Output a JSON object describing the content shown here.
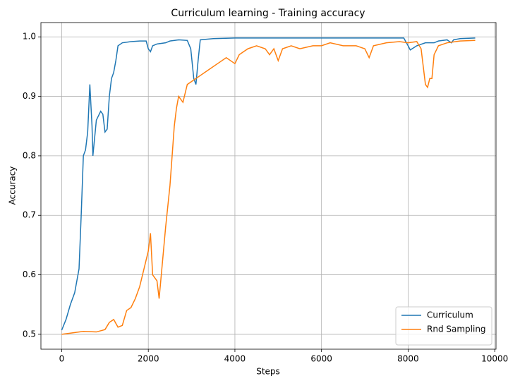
{
  "chart_data": {
    "type": "line",
    "title": "Curriculum learning - Training accuracy",
    "xlabel": "Steps",
    "ylabel": "Accuracy",
    "xlim": [
      -480,
      10030
    ],
    "ylim": [
      0.475,
      1.024
    ],
    "xticks": [
      0,
      2000,
      4000,
      6000,
      8000,
      10000
    ],
    "yticks": [
      0.5,
      0.6,
      0.7,
      0.8,
      0.9,
      {
        "value": 1,
        "label": "1.0"
      }
    ],
    "grid": true,
    "legend": "lower right",
    "series": [
      {
        "name": "Curriculum",
        "color": "#1f77b4",
        "x": [
          0,
          100,
          200,
          300,
          350,
          400,
          450,
          500,
          550,
          600,
          650,
          700,
          720,
          800,
          900,
          950,
          1000,
          1050,
          1100,
          1150,
          1200,
          1250,
          1300,
          1400,
          1600,
          1800,
          1950,
          2000,
          2050,
          2100,
          2200,
          2400,
          2500,
          2700,
          2900,
          2980,
          3050,
          3100,
          3150,
          3200,
          3500,
          4000,
          5000,
          6000,
          7000,
          7900,
          8000,
          8050,
          8200,
          8400,
          8600,
          8700,
          8900,
          9000,
          9050,
          9200,
          9550
        ],
        "values": [
          0.507,
          0.525,
          0.55,
          0.57,
          0.59,
          0.61,
          0.7,
          0.8,
          0.81,
          0.84,
          0.92,
          0.85,
          0.8,
          0.86,
          0.875,
          0.87,
          0.84,
          0.845,
          0.9,
          0.93,
          0.94,
          0.96,
          0.985,
          0.99,
          0.992,
          0.993,
          0.993,
          0.98,
          0.975,
          0.985,
          0.988,
          0.99,
          0.993,
          0.995,
          0.994,
          0.98,
          0.93,
          0.92,
          0.96,
          0.995,
          0.997,
          0.998,
          0.998,
          0.998,
          0.998,
          0.998,
          0.985,
          0.978,
          0.985,
          0.99,
          0.99,
          0.993,
          0.995,
          0.99,
          0.995,
          0.997,
          0.998
        ]
      },
      {
        "name": "Rnd Sampling",
        "color": "#ff7f0e",
        "x": [
          0,
          200,
          500,
          800,
          1000,
          1100,
          1200,
          1300,
          1400,
          1500,
          1600,
          1700,
          1800,
          1900,
          2000,
          2050,
          2100,
          2200,
          2250,
          2300,
          2400,
          2500,
          2550,
          2600,
          2650,
          2700,
          2800,
          2900,
          3000,
          3200,
          3400,
          3600,
          3800,
          4000,
          4100,
          4300,
          4500,
          4700,
          4800,
          4900,
          5000,
          5100,
          5300,
          5500,
          5800,
          6000,
          6200,
          6500,
          6800,
          7000,
          7100,
          7200,
          7500,
          7800,
          8000,
          8200,
          8300,
          8400,
          8450,
          8500,
          8550,
          8600,
          8700,
          8900,
          9200,
          9550
        ],
        "values": [
          0.5,
          0.502,
          0.505,
          0.504,
          0.508,
          0.52,
          0.525,
          0.512,
          0.515,
          0.54,
          0.545,
          0.56,
          0.58,
          0.61,
          0.64,
          0.67,
          0.6,
          0.59,
          0.56,
          0.6,
          0.68,
          0.75,
          0.8,
          0.85,
          0.88,
          0.9,
          0.89,
          0.92,
          0.925,
          0.935,
          0.945,
          0.955,
          0.965,
          0.955,
          0.97,
          0.98,
          0.985,
          0.98,
          0.97,
          0.98,
          0.96,
          0.98,
          0.985,
          0.98,
          0.985,
          0.985,
          0.99,
          0.985,
          0.985,
          0.98,
          0.965,
          0.985,
          0.99,
          0.992,
          0.99,
          0.992,
          0.98,
          0.92,
          0.915,
          0.93,
          0.93,
          0.97,
          0.985,
          0.99,
          0.993,
          0.994
        ]
      }
    ]
  }
}
